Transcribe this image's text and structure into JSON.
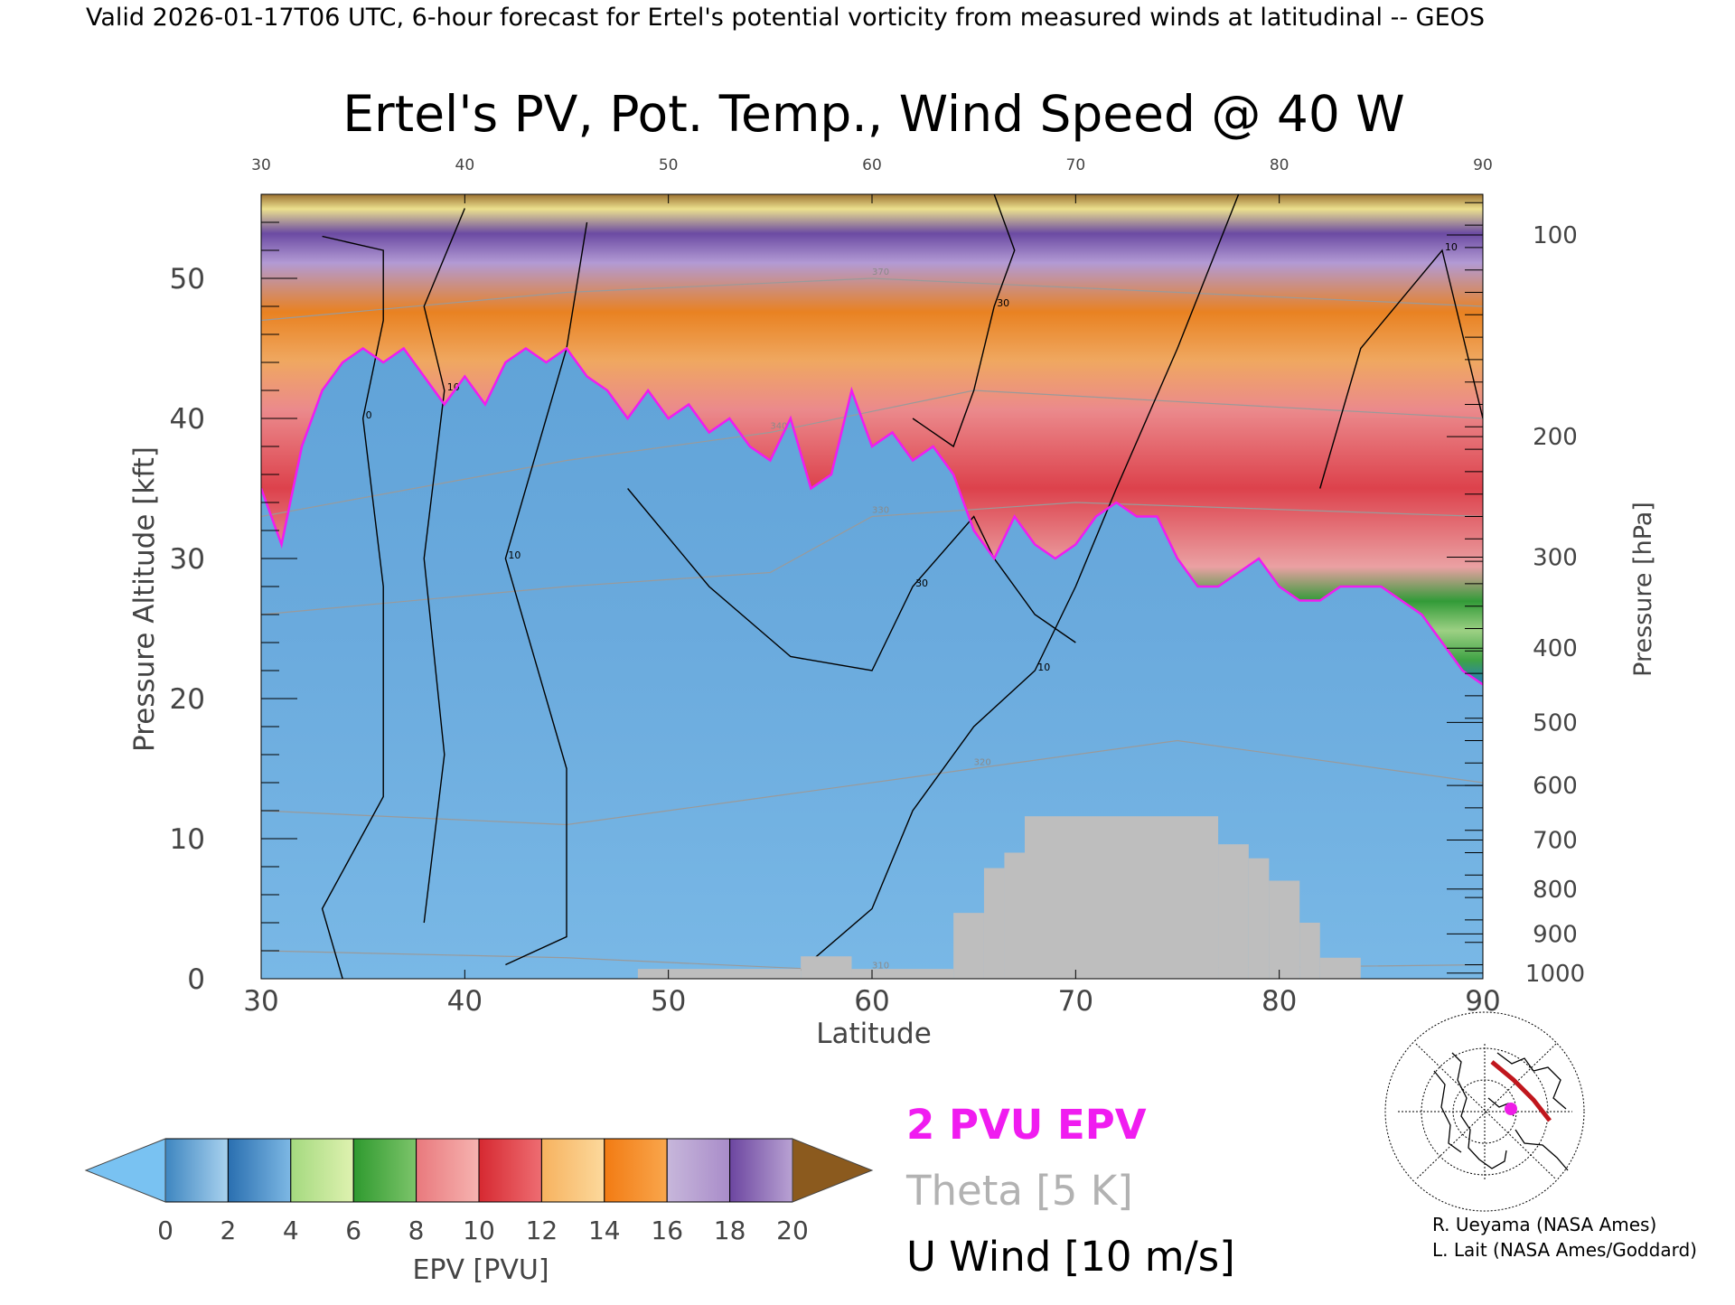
{
  "header": {
    "valid_line": "Valid 2026-01-17T06 UTC, 6-hour forecast for Ertel's potential vorticity from measured winds at latitudinal -- GEOS"
  },
  "chart_data": {
    "type": "heatmap",
    "title": "Ertel's PV, Pot. Temp., Wind Speed @ 40 W",
    "xlabel": "Latitude",
    "ylabel_left": "Pressure Altitude [kft]",
    "ylabel_right": "Pressure [hPa]",
    "xlim": [
      30,
      90
    ],
    "ylim": [
      0,
      56
    ],
    "x_ticks": [
      30,
      40,
      50,
      60,
      70,
      80,
      90
    ],
    "x_tick_labels": [
      "30",
      "40",
      "50",
      "60",
      "70",
      "80",
      "90"
    ],
    "top_tick_labels": [
      "30",
      "40",
      "50",
      "60",
      "70",
      "80",
      "90"
    ],
    "y_ticks": [
      0,
      10,
      20,
      30,
      40,
      50
    ],
    "y_tick_labels": [
      "0",
      "10",
      "20",
      "30",
      "40",
      "50"
    ],
    "pressure_ticks": [
      {
        "label": "100",
        "kft": 53.1
      },
      {
        "label": "200",
        "kft": 38.7
      },
      {
        "label": "300",
        "kft": 30.1
      },
      {
        "label": "400",
        "kft": 23.6
      },
      {
        "label": "500",
        "kft": 18.3
      },
      {
        "label": "600",
        "kft": 13.8
      },
      {
        "label": "700",
        "kft": 9.9
      },
      {
        "label": "800",
        "kft": 6.4
      },
      {
        "label": "900",
        "kft": 3.2
      },
      {
        "label": "1000",
        "kft": 0.4
      }
    ],
    "dynamic_tropopause_2pvu": [
      [
        30,
        35
      ],
      [
        31,
        31
      ],
      [
        32,
        38
      ],
      [
        33,
        42
      ],
      [
        34,
        44
      ],
      [
        35,
        45
      ],
      [
        36,
        44
      ],
      [
        37,
        45
      ],
      [
        38,
        43
      ],
      [
        39,
        41
      ],
      [
        40,
        43
      ],
      [
        41,
        41
      ],
      [
        42,
        44
      ],
      [
        43,
        45
      ],
      [
        44,
        44
      ],
      [
        45,
        45
      ],
      [
        46,
        43
      ],
      [
        47,
        42
      ],
      [
        48,
        40
      ],
      [
        49,
        42
      ],
      [
        50,
        40
      ],
      [
        51,
        41
      ],
      [
        52,
        39
      ],
      [
        53,
        40
      ],
      [
        54,
        38
      ],
      [
        55,
        37
      ],
      [
        56,
        40
      ],
      [
        57,
        35
      ],
      [
        58,
        36
      ],
      [
        59,
        42
      ],
      [
        60,
        38
      ],
      [
        61,
        39
      ],
      [
        62,
        37
      ],
      [
        63,
        38
      ],
      [
        64,
        36
      ],
      [
        65,
        32
      ],
      [
        66,
        30
      ],
      [
        67,
        33
      ],
      [
        68,
        31
      ],
      [
        69,
        30
      ],
      [
        70,
        31
      ],
      [
        71,
        33
      ],
      [
        72,
        34
      ],
      [
        73,
        33
      ],
      [
        74,
        33
      ],
      [
        75,
        30
      ],
      [
        76,
        28
      ],
      [
        77,
        28
      ],
      [
        78,
        29
      ],
      [
        79,
        30
      ],
      [
        80,
        28
      ],
      [
        81,
        27
      ],
      [
        82,
        27
      ],
      [
        83,
        28
      ],
      [
        84,
        28
      ],
      [
        85,
        28
      ],
      [
        86,
        27
      ],
      [
        87,
        26
      ],
      [
        88,
        24
      ],
      [
        89,
        22
      ],
      [
        90,
        21
      ]
    ],
    "terrain": [
      {
        "lat0": 48.5,
        "lat1": 56.5,
        "top_kft": 0.7
      },
      {
        "lat0": 56.5,
        "lat1": 59.0,
        "top_kft": 1.6
      },
      {
        "lat0": 59.0,
        "lat1": 64.0,
        "top_kft": 0.7
      },
      {
        "lat0": 64.0,
        "lat1": 65.5,
        "top_kft": 4.7
      },
      {
        "lat0": 65.5,
        "lat1": 66.5,
        "top_kft": 7.9
      },
      {
        "lat0": 66.5,
        "lat1": 67.5,
        "top_kft": 9.0
      },
      {
        "lat0": 67.5,
        "lat1": 77.0,
        "top_kft": 11.6
      },
      {
        "lat0": 77.0,
        "lat1": 78.5,
        "top_kft": 9.6
      },
      {
        "lat0": 78.5,
        "lat1": 79.5,
        "top_kft": 8.6
      },
      {
        "lat0": 79.5,
        "lat1": 81.0,
        "top_kft": 7.0
      },
      {
        "lat0": 81.0,
        "lat1": 82.0,
        "top_kft": 4.0
      },
      {
        "lat0": 82.0,
        "lat1": 84.0,
        "top_kft": 1.5
      }
    ],
    "theta_lines": [
      {
        "label": "310",
        "points": [
          [
            30,
            2
          ],
          [
            45,
            1.5
          ],
          [
            60,
            0.5
          ],
          [
            90,
            1
          ]
        ]
      },
      {
        "label": "320",
        "points": [
          [
            30,
            12
          ],
          [
            45,
            11
          ],
          [
            55,
            13
          ],
          [
            65,
            15
          ],
          [
            75,
            17
          ],
          [
            90,
            14
          ]
        ]
      },
      {
        "label": "330",
        "points": [
          [
            30,
            26
          ],
          [
            45,
            28
          ],
          [
            55,
            29
          ],
          [
            60,
            33
          ],
          [
            70,
            34
          ],
          [
            90,
            33
          ]
        ]
      },
      {
        "label": "340",
        "points": [
          [
            30,
            33
          ],
          [
            45,
            37
          ],
          [
            55,
            39
          ],
          [
            65,
            42
          ],
          [
            90,
            40
          ]
        ]
      },
      {
        "label": "370",
        "points": [
          [
            30,
            47
          ],
          [
            45,
            49
          ],
          [
            60,
            50
          ],
          [
            90,
            48
          ]
        ]
      }
    ],
    "wind_contours": [
      {
        "label": "0",
        "points": [
          [
            34,
            0
          ],
          [
            33,
            5
          ],
          [
            36,
            13
          ],
          [
            36,
            28
          ],
          [
            35,
            40
          ],
          [
            36,
            47
          ],
          [
            36,
            52
          ],
          [
            33,
            53
          ]
        ]
      },
      {
        "label": "10",
        "points": [
          [
            38,
            4
          ],
          [
            39,
            16
          ],
          [
            38,
            30
          ],
          [
            39,
            42
          ],
          [
            38,
            48
          ],
          [
            40,
            55
          ]
        ]
      },
      {
        "label": "10",
        "points": [
          [
            42,
            1
          ],
          [
            45,
            3
          ],
          [
            45,
            15
          ],
          [
            42,
            30
          ],
          [
            45,
            45
          ],
          [
            46,
            54
          ]
        ]
      },
      {
        "label": "30",
        "points": [
          [
            48,
            35
          ],
          [
            52,
            28
          ],
          [
            56,
            23
          ],
          [
            60,
            22
          ],
          [
            62,
            28
          ],
          [
            65,
            33
          ],
          [
            66,
            30
          ],
          [
            68,
            26
          ],
          [
            70,
            24
          ]
        ]
      },
      {
        "label": "10",
        "points": [
          [
            56,
            0
          ],
          [
            60,
            5
          ],
          [
            62,
            12
          ],
          [
            65,
            18
          ],
          [
            68,
            22
          ],
          [
            70,
            28
          ],
          [
            72,
            35
          ],
          [
            75,
            45
          ],
          [
            78,
            56
          ]
        ]
      },
      {
        "label": "30",
        "points": [
          [
            62,
            40
          ],
          [
            64,
            38
          ],
          [
            65,
            42
          ],
          [
            66,
            48
          ],
          [
            67,
            52
          ],
          [
            66,
            56
          ]
        ]
      },
      {
        "label": "10",
        "points": [
          [
            82,
            35
          ],
          [
            84,
            45
          ],
          [
            88,
            52
          ],
          [
            90,
            40
          ]
        ]
      }
    ],
    "color_scale": {
      "label": "EPV [PVU]",
      "min": 0,
      "max": 20,
      "step": 2,
      "tick_labels": [
        "0",
        "2",
        "4",
        "6",
        "8",
        "10",
        "12",
        "14",
        "16",
        "18",
        "20"
      ],
      "segments": [
        [
          "#3e86c0",
          "#a9d2ef"
        ],
        [
          "#2a6fb0",
          "#7db8e4"
        ],
        [
          "#a4d97f",
          "#dff2b0"
        ],
        [
          "#2f9a2f",
          "#7cc46a"
        ],
        [
          "#e9797d",
          "#f6b3b0"
        ],
        [
          "#d62931",
          "#ee6d72"
        ],
        [
          "#f7b25f",
          "#fcd99c"
        ],
        [
          "#f27b13",
          "#f9a64c"
        ],
        [
          "#c7b7db",
          "#a98cc9"
        ],
        [
          "#6c46a0",
          "#b9a2d3"
        ],
        [
          "#f3e48a",
          "#fbf5b8"
        ]
      ],
      "under_color": "#79c2f2",
      "over_color": "#8b5a1e"
    },
    "legend": {
      "epv_label": "2 PVU EPV",
      "epv_color": "#f01cf0",
      "theta_label": "Theta [5 K]",
      "theta_color": "#b2b2b2",
      "wind_label": "U Wind [10 m/s]",
      "wind_color": "#000000"
    },
    "grid": false
  },
  "credits": {
    "line1": "R. Ueyama (NASA Ames)",
    "line2": "L. Lait (NASA Ames/Goddard)"
  },
  "colors": {
    "terrain": "#bebebe",
    "track": "#c0161d",
    "marker": "#ee1de6"
  }
}
